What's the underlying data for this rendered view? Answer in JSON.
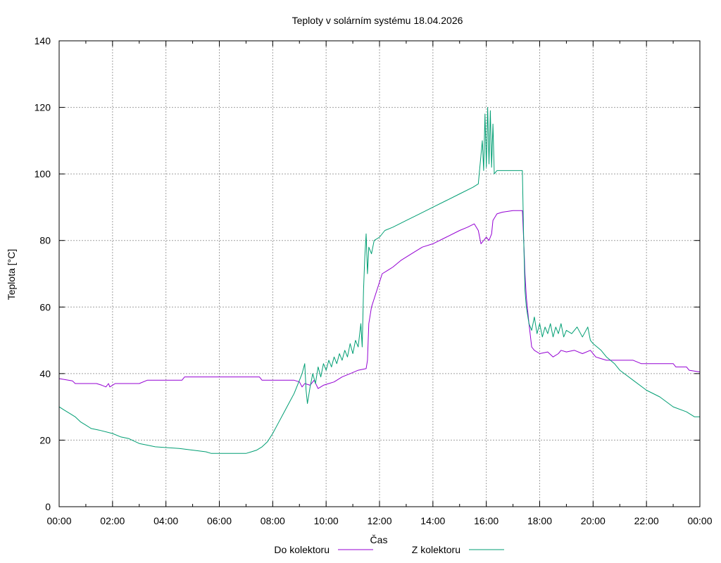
{
  "chart_data": {
    "type": "line",
    "title": "Teploty v solárním systému 18.04.2026",
    "xlabel": "Čas",
    "ylabel": "Teplota [°C]",
    "ylim": [
      0,
      140
    ],
    "yticks": [
      "0",
      "20",
      "40",
      "60",
      "80",
      "100",
      "120",
      "140"
    ],
    "xlim": [
      0,
      24
    ],
    "xticks": [
      "00:00",
      "02:00",
      "04:00",
      "06:00",
      "08:00",
      "10:00",
      "12:00",
      "14:00",
      "16:00",
      "18:00",
      "20:00",
      "22:00",
      "00:00"
    ],
    "grid": true,
    "legend_position": "bottom",
    "series": [
      {
        "name": "Do kolektoru",
        "color": "#9400d3",
        "points": [
          [
            0,
            38.5
          ],
          [
            0.5,
            37.8
          ],
          [
            0.6,
            37
          ],
          [
            1.4,
            37
          ],
          [
            1.6,
            36.5
          ],
          [
            1.75,
            36
          ],
          [
            1.85,
            37
          ],
          [
            1.9,
            36
          ],
          [
            2.0,
            36.5
          ],
          [
            2.1,
            37
          ],
          [
            3.0,
            37
          ],
          [
            3.3,
            38
          ],
          [
            4.6,
            38
          ],
          [
            4.7,
            39
          ],
          [
            7.5,
            39
          ],
          [
            7.6,
            38
          ],
          [
            8.8,
            38
          ],
          [
            9.0,
            37.5
          ],
          [
            9.1,
            36
          ],
          [
            9.2,
            37
          ],
          [
            9.4,
            36.5
          ],
          [
            9.55,
            38
          ],
          [
            9.7,
            35.5
          ],
          [
            9.9,
            36.5
          ],
          [
            10.1,
            37
          ],
          [
            10.3,
            37.5
          ],
          [
            10.6,
            39
          ],
          [
            10.9,
            40
          ],
          [
            11.2,
            41
          ],
          [
            11.5,
            41.5
          ],
          [
            11.55,
            44
          ],
          [
            11.6,
            55
          ],
          [
            11.7,
            60
          ],
          [
            11.9,
            65
          ],
          [
            12.1,
            70
          ],
          [
            12.3,
            71
          ],
          [
            12.5,
            72
          ],
          [
            12.8,
            74
          ],
          [
            13.2,
            76
          ],
          [
            13.6,
            78
          ],
          [
            14.0,
            79
          ],
          [
            14.5,
            81
          ],
          [
            15.0,
            83
          ],
          [
            15.3,
            84
          ],
          [
            15.55,
            85
          ],
          [
            15.7,
            83
          ],
          [
            15.8,
            79
          ],
          [
            15.9,
            80
          ],
          [
            16.0,
            81
          ],
          [
            16.1,
            80
          ],
          [
            16.2,
            82
          ],
          [
            16.25,
            86
          ],
          [
            16.4,
            88
          ],
          [
            16.6,
            88.5
          ],
          [
            17.0,
            89
          ],
          [
            17.35,
            89
          ],
          [
            17.4,
            80
          ],
          [
            17.45,
            70
          ],
          [
            17.5,
            63
          ],
          [
            17.6,
            55
          ],
          [
            17.7,
            48
          ],
          [
            17.8,
            47
          ],
          [
            18.0,
            46
          ],
          [
            18.3,
            46.5
          ],
          [
            18.5,
            45
          ],
          [
            18.7,
            46
          ],
          [
            18.8,
            47
          ],
          [
            19.0,
            46.5
          ],
          [
            19.3,
            47
          ],
          [
            19.6,
            46
          ],
          [
            19.9,
            47
          ],
          [
            20.1,
            45
          ],
          [
            20.3,
            44.5
          ],
          [
            20.5,
            44
          ],
          [
            21.5,
            44
          ],
          [
            21.8,
            43
          ],
          [
            23.0,
            43
          ],
          [
            23.1,
            42
          ],
          [
            23.5,
            42
          ],
          [
            23.6,
            41
          ],
          [
            24,
            40.5
          ]
        ]
      },
      {
        "name": "Z kolektoru",
        "color": "#009e73",
        "points": [
          [
            0,
            30
          ],
          [
            0.2,
            29
          ],
          [
            0.4,
            28
          ],
          [
            0.6,
            27
          ],
          [
            0.8,
            25.5
          ],
          [
            1.0,
            24.5
          ],
          [
            1.2,
            23.5
          ],
          [
            1.5,
            23
          ],
          [
            2.0,
            22
          ],
          [
            2.3,
            21
          ],
          [
            2.6,
            20.5
          ],
          [
            3.0,
            19
          ],
          [
            3.3,
            18.5
          ],
          [
            3.6,
            18
          ],
          [
            4.5,
            17.5
          ],
          [
            5.0,
            17
          ],
          [
            5.5,
            16.5
          ],
          [
            5.7,
            16
          ],
          [
            7.0,
            16
          ],
          [
            7.2,
            16.5
          ],
          [
            7.4,
            17
          ],
          [
            7.6,
            18
          ],
          [
            7.8,
            19.5
          ],
          [
            8.0,
            22
          ],
          [
            8.2,
            25
          ],
          [
            8.4,
            28
          ],
          [
            8.6,
            31
          ],
          [
            8.8,
            34
          ],
          [
            9.0,
            38
          ],
          [
            9.1,
            40
          ],
          [
            9.2,
            43
          ],
          [
            9.25,
            35
          ],
          [
            9.3,
            31
          ],
          [
            9.4,
            36
          ],
          [
            9.5,
            40
          ],
          [
            9.6,
            37
          ],
          [
            9.7,
            42
          ],
          [
            9.8,
            39
          ],
          [
            9.9,
            43
          ],
          [
            10.0,
            41
          ],
          [
            10.1,
            44
          ],
          [
            10.2,
            42
          ],
          [
            10.3,
            45
          ],
          [
            10.4,
            43
          ],
          [
            10.5,
            46
          ],
          [
            10.6,
            44
          ],
          [
            10.7,
            47
          ],
          [
            10.8,
            45
          ],
          [
            10.9,
            49
          ],
          [
            11.0,
            46
          ],
          [
            11.1,
            50
          ],
          [
            11.2,
            48
          ],
          [
            11.3,
            55
          ],
          [
            11.35,
            48
          ],
          [
            11.4,
            65
          ],
          [
            11.45,
            75
          ],
          [
            11.5,
            82
          ],
          [
            11.55,
            70
          ],
          [
            11.6,
            78
          ],
          [
            11.7,
            76
          ],
          [
            11.8,
            80
          ],
          [
            12.0,
            81
          ],
          [
            12.2,
            83
          ],
          [
            12.5,
            84
          ],
          [
            13.0,
            86
          ],
          [
            13.5,
            88
          ],
          [
            14.0,
            90
          ],
          [
            14.5,
            92
          ],
          [
            15.0,
            94
          ],
          [
            15.5,
            96
          ],
          [
            15.7,
            97
          ],
          [
            15.85,
            110
          ],
          [
            15.9,
            101
          ],
          [
            15.95,
            118
          ],
          [
            16.0,
            102
          ],
          [
            16.05,
            120
          ],
          [
            16.1,
            103
          ],
          [
            16.15,
            119
          ],
          [
            16.2,
            102
          ],
          [
            16.25,
            115
          ],
          [
            16.3,
            100
          ],
          [
            16.4,
            101
          ],
          [
            17.0,
            101
          ],
          [
            17.35,
            101
          ],
          [
            17.4,
            80
          ],
          [
            17.45,
            65
          ],
          [
            17.5,
            60
          ],
          [
            17.6,
            55
          ],
          [
            17.7,
            53
          ],
          [
            17.8,
            57
          ],
          [
            17.9,
            52
          ],
          [
            18.0,
            55
          ],
          [
            18.1,
            51
          ],
          [
            18.2,
            54
          ],
          [
            18.3,
            52
          ],
          [
            18.4,
            55
          ],
          [
            18.5,
            51
          ],
          [
            18.6,
            54
          ],
          [
            18.7,
            52
          ],
          [
            18.8,
            55
          ],
          [
            18.9,
            51
          ],
          [
            19.0,
            53
          ],
          [
            19.2,
            52
          ],
          [
            19.4,
            54
          ],
          [
            19.6,
            51
          ],
          [
            19.8,
            54
          ],
          [
            19.9,
            50
          ],
          [
            20.0,
            49
          ],
          [
            20.3,
            47
          ],
          [
            20.5,
            45
          ],
          [
            20.8,
            43
          ],
          [
            21.0,
            41
          ],
          [
            21.5,
            38
          ],
          [
            22.0,
            35
          ],
          [
            22.5,
            33
          ],
          [
            23.0,
            30
          ],
          [
            23.5,
            28.5
          ],
          [
            23.8,
            27
          ],
          [
            24,
            27
          ]
        ]
      }
    ]
  }
}
